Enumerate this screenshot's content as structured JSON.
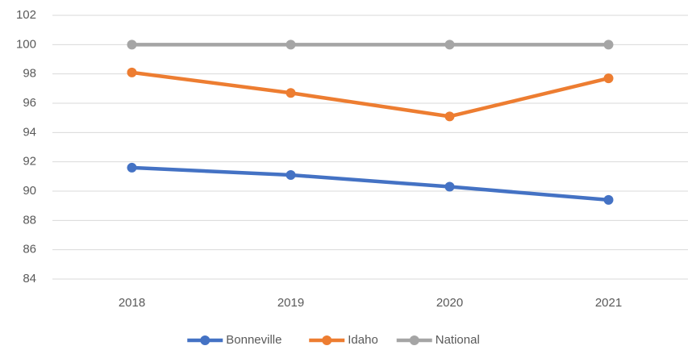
{
  "chart_data": {
    "type": "line",
    "categories": [
      "2018",
      "2019",
      "2020",
      "2021"
    ],
    "series": [
      {
        "name": "Bonneville",
        "color": "#4472c4",
        "values": [
          91.6,
          91.1,
          90.3,
          89.4
        ]
      },
      {
        "name": "Idaho",
        "color": "#ed7d31",
        "values": [
          98.1,
          96.7,
          95.1,
          97.7
        ]
      },
      {
        "name": "National",
        "color": "#a5a5a5",
        "values": [
          100,
          100,
          100,
          100
        ]
      }
    ],
    "ylim": [
      84,
      102
    ],
    "yticks": [
      84,
      86,
      88,
      90,
      92,
      94,
      96,
      98,
      100,
      102
    ],
    "grid": true,
    "legend": "bottom"
  }
}
